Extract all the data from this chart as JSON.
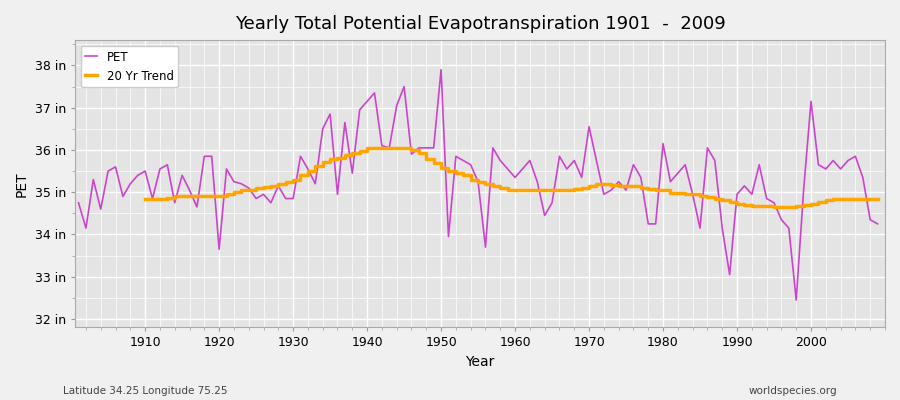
{
  "title": "Yearly Total Potential Evapotranspiration 1901  -  2009",
  "xlabel": "Year",
  "ylabel": "PET",
  "subtitle_left": "Latitude 34.25 Longitude 75.25",
  "subtitle_right": "worldspecies.org",
  "pet_color": "#CC44CC",
  "trend_color": "#FFA500",
  "bg_color": "#F0F0F0",
  "plot_bg_color": "#E4E4E4",
  "ylim": [
    31.8,
    38.6
  ],
  "xlim": [
    1900.5,
    2010
  ],
  "yticks": [
    32,
    33,
    34,
    35,
    36,
    37,
    38
  ],
  "ytick_labels": [
    "32 in",
    "33 in",
    "34 in",
    "35 in",
    "36 in",
    "37 in",
    "38 in"
  ],
  "years": [
    1901,
    1902,
    1903,
    1904,
    1905,
    1906,
    1907,
    1908,
    1909,
    1910,
    1911,
    1912,
    1913,
    1914,
    1915,
    1916,
    1917,
    1918,
    1919,
    1920,
    1921,
    1922,
    1923,
    1924,
    1925,
    1926,
    1927,
    1928,
    1929,
    1930,
    1931,
    1932,
    1933,
    1934,
    1935,
    1936,
    1937,
    1938,
    1939,
    1940,
    1941,
    1942,
    1943,
    1944,
    1945,
    1946,
    1947,
    1948,
    1949,
    1950,
    1951,
    1952,
    1953,
    1954,
    1955,
    1956,
    1957,
    1958,
    1959,
    1960,
    1961,
    1962,
    1963,
    1964,
    1965,
    1966,
    1967,
    1968,
    1969,
    1970,
    1971,
    1972,
    1973,
    1974,
    1975,
    1976,
    1977,
    1978,
    1979,
    1980,
    1981,
    1982,
    1983,
    1984,
    1985,
    1986,
    1987,
    1988,
    1989,
    1990,
    1991,
    1992,
    1993,
    1994,
    1995,
    1996,
    1997,
    1998,
    1999,
    2000,
    2001,
    2002,
    2003,
    2004,
    2005,
    2006,
    2007,
    2008,
    2009
  ],
  "pet_values": [
    34.75,
    34.15,
    35.3,
    34.6,
    35.5,
    35.6,
    34.9,
    35.2,
    35.4,
    35.5,
    34.85,
    35.55,
    35.65,
    34.75,
    35.4,
    35.05,
    34.65,
    35.85,
    35.85,
    33.65,
    35.55,
    35.25,
    35.2,
    35.1,
    34.85,
    34.95,
    34.75,
    35.15,
    34.85,
    34.85,
    35.85,
    35.55,
    35.2,
    36.5,
    36.85,
    34.95,
    36.65,
    35.45,
    36.95,
    37.15,
    37.35,
    36.1,
    36.05,
    37.05,
    37.5,
    35.9,
    36.05,
    36.05,
    36.05,
    37.9,
    33.95,
    35.85,
    35.75,
    35.65,
    35.25,
    33.7,
    36.05,
    35.75,
    35.55,
    35.35,
    35.55,
    35.75,
    35.25,
    34.45,
    34.75,
    35.85,
    35.55,
    35.75,
    35.35,
    36.55,
    35.75,
    34.95,
    35.05,
    35.25,
    35.05,
    35.65,
    35.35,
    34.25,
    34.25,
    36.15,
    35.25,
    35.45,
    35.65,
    34.95,
    34.15,
    36.05,
    35.75,
    34.15,
    33.05,
    34.95,
    35.15,
    34.95,
    35.65,
    34.85,
    34.75,
    34.35,
    34.15,
    32.45,
    35.05,
    37.15,
    35.65,
    35.55,
    35.75,
    35.55,
    35.75,
    35.85,
    35.35,
    34.35,
    34.25
  ],
  "trend_years": [
    1910,
    1911,
    1912,
    1913,
    1914,
    1915,
    1916,
    1917,
    1918,
    1919,
    1920,
    1921,
    1922,
    1923,
    1924,
    1925,
    1926,
    1927,
    1928,
    1929,
    1930,
    1931,
    1932,
    1933,
    1934,
    1935,
    1936,
    1937,
    1938,
    1939,
    1940,
    1941,
    1942,
    1943,
    1944,
    1945,
    1946,
    1947,
    1948,
    1949,
    1950,
    1951,
    1952,
    1953,
    1954,
    1955,
    1956,
    1957,
    1958,
    1959,
    1960,
    1961,
    1962,
    1963,
    1964,
    1965,
    1966,
    1967,
    1968,
    1969,
    1970,
    1971,
    1972,
    1973,
    1974,
    1975,
    1976,
    1977,
    1978,
    1979,
    1980,
    1981,
    1982,
    1983,
    1984,
    1985,
    1986,
    1987,
    1988,
    1989,
    1990,
    1991,
    1992,
    1993,
    1994,
    1995,
    1996,
    1997,
    1998,
    1999,
    2000,
    2001,
    2002,
    2003,
    2004,
    2005,
    2006,
    2007,
    2008,
    2009
  ],
  "trend_values": [
    34.85,
    34.85,
    34.85,
    34.87,
    34.9,
    34.9,
    34.9,
    34.9,
    34.9,
    34.9,
    34.92,
    34.95,
    35.0,
    35.05,
    35.05,
    35.1,
    35.12,
    35.15,
    35.2,
    35.25,
    35.3,
    35.4,
    35.5,
    35.62,
    35.72,
    35.78,
    35.82,
    35.88,
    35.92,
    35.98,
    36.05,
    36.05,
    36.05,
    36.05,
    36.05,
    36.05,
    36.0,
    35.92,
    35.78,
    35.68,
    35.58,
    35.5,
    35.45,
    35.4,
    35.3,
    35.25,
    35.2,
    35.15,
    35.1,
    35.05,
    35.05,
    35.05,
    35.05,
    35.05,
    35.05,
    35.05,
    35.05,
    35.05,
    35.08,
    35.1,
    35.15,
    35.2,
    35.2,
    35.18,
    35.15,
    35.15,
    35.15,
    35.1,
    35.08,
    35.05,
    35.05,
    34.98,
    34.98,
    34.95,
    34.95,
    34.9,
    34.88,
    34.85,
    34.82,
    34.78,
    34.72,
    34.7,
    34.68,
    34.68,
    34.68,
    34.65,
    34.65,
    34.65,
    34.68,
    34.7,
    34.72,
    34.78,
    34.82,
    34.85,
    34.85,
    34.85,
    34.85,
    34.85,
    34.85,
    34.85
  ]
}
